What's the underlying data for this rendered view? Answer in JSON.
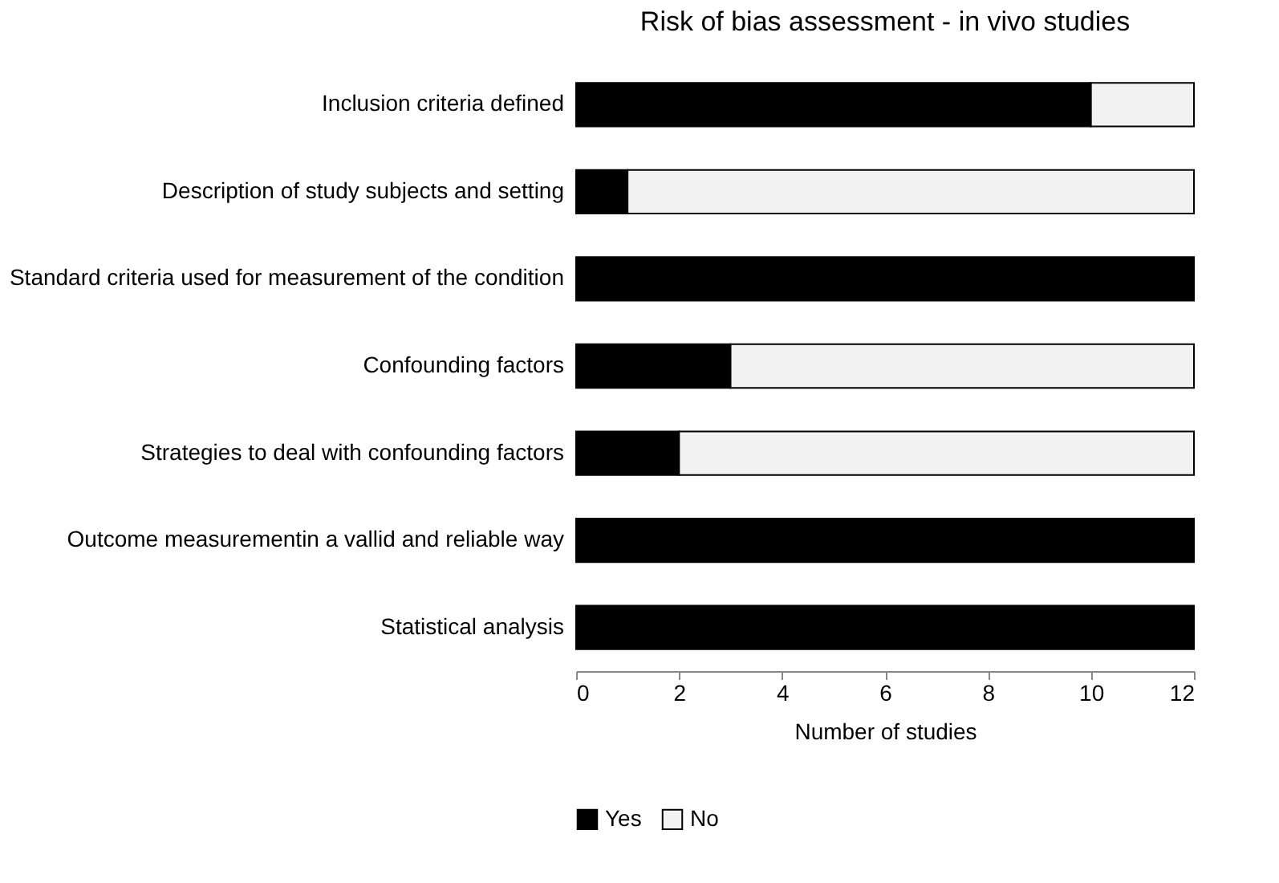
{
  "chart_data": {
    "type": "bar",
    "orientation": "horizontal",
    "stacked": true,
    "title": "Risk of bias assessment - in vivo studies",
    "categories": [
      "Inclusion criteria defined",
      "Description of study subjects and setting",
      "Standard criteria used for measurement of the condition",
      "Confounding factors",
      "Strategies to deal with confounding factors",
      "Outcome measurementin a vallid and reliable way",
      "Statistical analysis"
    ],
    "series": [
      {
        "name": "Yes",
        "color": "#000000",
        "values": [
          10,
          1,
          12,
          3,
          2,
          12,
          12
        ]
      },
      {
        "name": "No",
        "color": "#f2f2f2",
        "values": [
          2,
          11,
          0,
          9,
          10,
          0,
          0
        ]
      }
    ],
    "xlabel": "Number of studies",
    "xlim": [
      0,
      12
    ],
    "xticks": [
      0,
      2,
      4,
      6,
      8,
      10,
      12
    ],
    "grid": false,
    "legend": "bottom"
  }
}
